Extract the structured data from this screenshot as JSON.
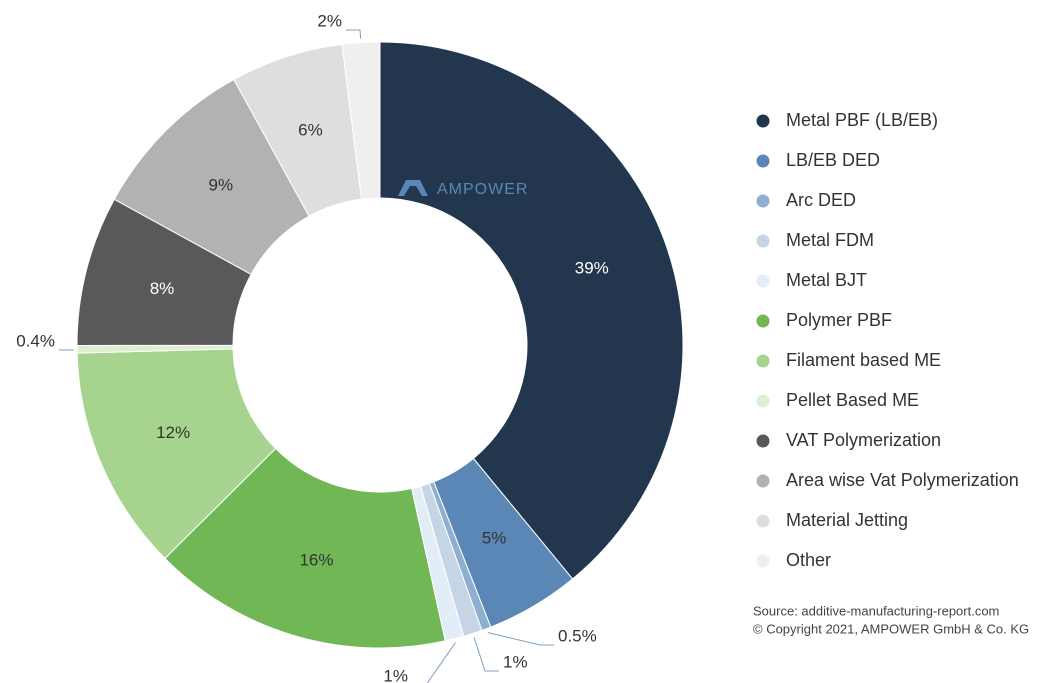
{
  "chart_data": {
    "type": "donut",
    "categories": [
      "Metal PBF (LB/EB)",
      "LB/EB DED",
      "Arc DED",
      "Metal FDM",
      "Metal BJT",
      "Polymer PBF",
      "Filament based ME",
      "Pellet Based ME",
      "VAT Polymerization",
      "Area wise Vat Polymerization",
      "Material Jetting",
      "Other"
    ],
    "values": [
      39,
      5,
      0.5,
      1,
      1,
      16,
      12,
      0.4,
      8,
      9,
      6,
      2
    ],
    "value_labels": [
      "39%",
      "5%",
      "0.5%",
      "1%",
      "1%",
      "16%",
      "12%",
      "0.4%",
      "8%",
      "9%",
      "6%",
      "2%"
    ],
    "colors": [
      "#22374d",
      "#5a87b5",
      "#8eafd0",
      "#c5d5e6",
      "#e3edf7",
      "#72b755",
      "#a6d48f",
      "#dcefd3",
      "#595959",
      "#b2b2b2",
      "#dedede",
      "#efefef"
    ],
    "watermark": "AMPOWER",
    "source": [
      "Source: additive-manufacturing-report.com",
      "© Copyright 2021, AMPOWER GmbH & Co. KG"
    ]
  }
}
